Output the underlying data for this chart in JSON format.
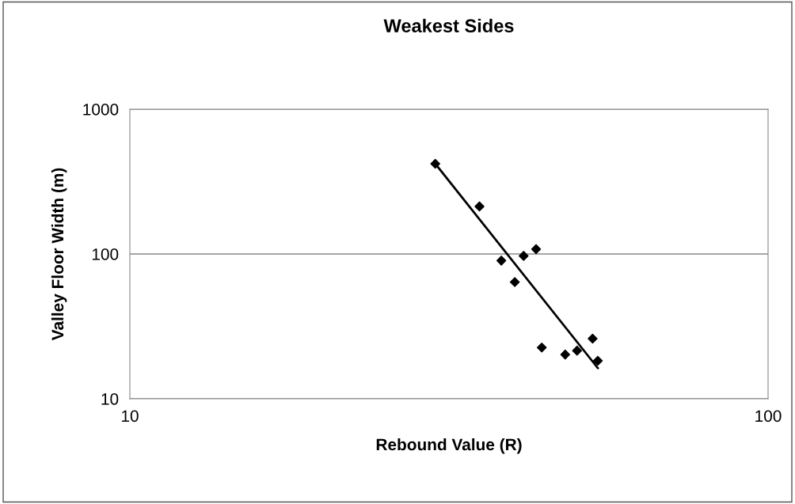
{
  "chart_data": {
    "type": "scatter",
    "title": "Weakest Sides",
    "xlabel": "Rebound Value (R)",
    "ylabel": "Valley Floor Width (m)",
    "log": "xy",
    "grid": "y",
    "legend": false,
    "marker": "diamond",
    "xlim": [
      10,
      100
    ],
    "xticks": [
      10,
      100
    ],
    "ylim": [
      10,
      1000
    ],
    "yticks": [
      10,
      100,
      1000
    ],
    "series": [
      {
        "color": "#000000",
        "x": [
          30.1,
          35.3,
          38.2,
          41.4,
          43.3,
          40.1,
          44.2,
          48.1,
          50.2,
          53.1,
          54.1
        ],
        "values": [
          420,
          213,
          90,
          97,
          108,
          64,
          22.6,
          20.2,
          21.5,
          26,
          18.3
        ]
      },
      {
        "type": "line",
        "color": "#000000",
        "marker": "none",
        "line_style": "solid",
        "x": [
          30.1,
          54.1
        ],
        "values": [
          420,
          16.3
        ]
      }
    ]
  }
}
